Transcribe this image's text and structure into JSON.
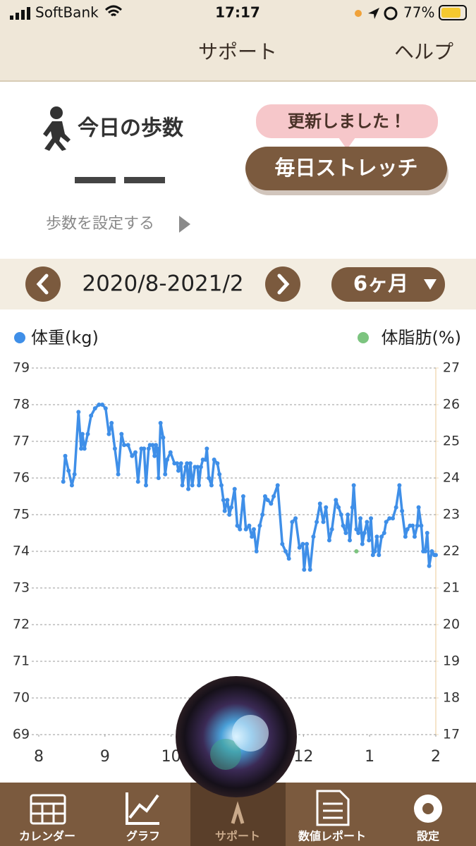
{
  "status_bar": {
    "carrier": "SoftBank",
    "time": "17:17",
    "battery": "77%"
  },
  "nav_bar": {
    "title": "サポート",
    "help": "ヘルプ"
  },
  "steps": {
    "title": "今日の歩数",
    "setting": "歩数を設定する"
  },
  "notice": {
    "bubble": "更新しました！",
    "button": "毎日ストレッチ"
  },
  "period": {
    "range": "2020/8-2021/2",
    "span": "6ヶ月"
  },
  "chart_data": {
    "type": "line",
    "series": [
      {
        "name": "体重(kg)",
        "color": "#3f8fe8",
        "x": [
          8.37,
          8.4,
          8.45,
          8.5,
          8.54,
          8.6,
          8.64,
          8.66,
          8.69,
          8.74,
          8.79,
          8.85,
          8.91,
          8.96,
          9.01,
          9.06,
          9.1,
          9.15,
          9.2,
          9.25,
          9.29,
          9.35,
          9.41,
          9.46,
          9.5,
          9.55,
          9.59,
          9.62,
          9.66,
          9.68,
          9.72,
          9.75,
          9.77,
          9.79,
          9.81,
          9.84,
          9.88,
          9.91,
          9.94,
          9.99,
          10.05,
          10.09,
          10.11,
          10.15,
          10.17,
          10.22,
          10.24,
          10.26,
          10.29,
          10.32,
          10.36,
          10.4,
          10.42,
          10.45,
          10.48,
          10.52,
          10.54,
          10.57,
          10.61,
          10.65,
          10.7,
          10.73,
          10.76,
          10.79,
          10.81,
          10.85,
          10.88,
          10.91,
          10.96,
          11.0,
          11.04,
          11.09,
          11.13,
          11.18,
          11.22,
          11.25,
          11.29,
          11.34,
          11.38,
          11.42,
          11.46,
          11.51,
          11.55,
          11.61,
          11.68,
          11.73,
          11.78,
          11.83,
          11.88,
          11.94,
          11.99,
          12.01,
          12.05,
          12.1,
          12.15,
          12.2,
          12.25,
          12.3,
          12.34,
          12.39,
          12.43,
          12.49,
          12.53,
          12.57,
          12.6,
          12.64,
          12.67,
          12.7,
          12.74,
          12.76,
          12.8,
          12.83,
          12.86,
          12.89,
          12.92,
          12.96,
          12.99,
          13.02,
          13.05,
          13.08,
          13.11,
          13.14,
          13.18,
          13.22,
          13.25,
          13.3,
          13.35,
          13.4,
          13.45,
          13.49,
          13.54,
          13.57,
          13.61,
          13.65,
          13.68,
          13.72,
          13.74,
          13.78,
          13.81,
          13.84,
          13.87,
          13.9,
          13.94,
          13.98,
          14.0
        ],
        "values": [
          75.9,
          76.6,
          76.2,
          75.8,
          76.1,
          77.8,
          76.8,
          77.2,
          76.8,
          77.2,
          77.7,
          77.9,
          78.0,
          78.0,
          77.9,
          77.2,
          77.5,
          76.8,
          76.1,
          77.2,
          76.9,
          76.9,
          76.6,
          76.7,
          75.9,
          76.8,
          76.8,
          75.8,
          76.8,
          76.9,
          76.9,
          76.6,
          76.9,
          76.8,
          76.0,
          77.5,
          77.1,
          76.1,
          76.5,
          76.7,
          76.4,
          76.4,
          76.2,
          76.4,
          75.8,
          76.3,
          76.4,
          75.7,
          76.4,
          75.8,
          76.3,
          76.3,
          75.8,
          76.3,
          76.5,
          76.5,
          76.8,
          76.0,
          75.8,
          76.5,
          76.4,
          76.1,
          75.8,
          75.4,
          75.1,
          75.4,
          75.0,
          75.2,
          75.7,
          74.7,
          74.6,
          75.5,
          74.6,
          74.7,
          74.4,
          74.6,
          74.0,
          74.7,
          75.0,
          75.5,
          75.4,
          75.3,
          75.5,
          75.8,
          74.2,
          74.0,
          73.8,
          74.8,
          74.9,
          74.1,
          74.2,
          73.5,
          74.2,
          73.5,
          74.4,
          74.8,
          75.3,
          74.8,
          75.2,
          74.3,
          74.6,
          75.4,
          75.2,
          75.0,
          74.7,
          74.5,
          75.0,
          74.3,
          75.2,
          75.8,
          74.6,
          74.5,
          74.9,
          74.2,
          74.5,
          74.8,
          74.3,
          74.9,
          73.9,
          74.0,
          74.4,
          73.9,
          74.4,
          74.5,
          74.8,
          74.9,
          74.9,
          75.2,
          75.8,
          75.1,
          74.4,
          74.6,
          74.7,
          74.7,
          74.4,
          74.7,
          75.2,
          74.7,
          74.0,
          74.0,
          74.5,
          73.6,
          74.0,
          73.9,
          73.9
        ]
      },
      {
        "name": "体脂肪(%)",
        "color": "#7cc47f",
        "axis": "y2",
        "x": [
          12.8
        ],
        "values": [
          22
        ]
      }
    ],
    "xlim": [
      8,
      14
    ],
    "xticks": [
      8,
      9,
      10,
      12,
      {
        "value": 13,
        "label": "1"
      },
      {
        "value": 14,
        "label": "2"
      }
    ],
    "ylim": [
      69,
      79
    ],
    "yticks": [
      69,
      70,
      71,
      72,
      73,
      74,
      75,
      76,
      77,
      78,
      79
    ],
    "y2lim": [
      17,
      27
    ],
    "y2ticks": [
      17,
      18,
      19,
      20,
      21,
      22,
      23,
      24,
      25,
      26,
      27
    ],
    "grid": true
  },
  "tab_bar": {
    "items": [
      "カレンダー",
      "グラフ",
      "サポート",
      "数値レポート",
      "設定"
    ]
  }
}
